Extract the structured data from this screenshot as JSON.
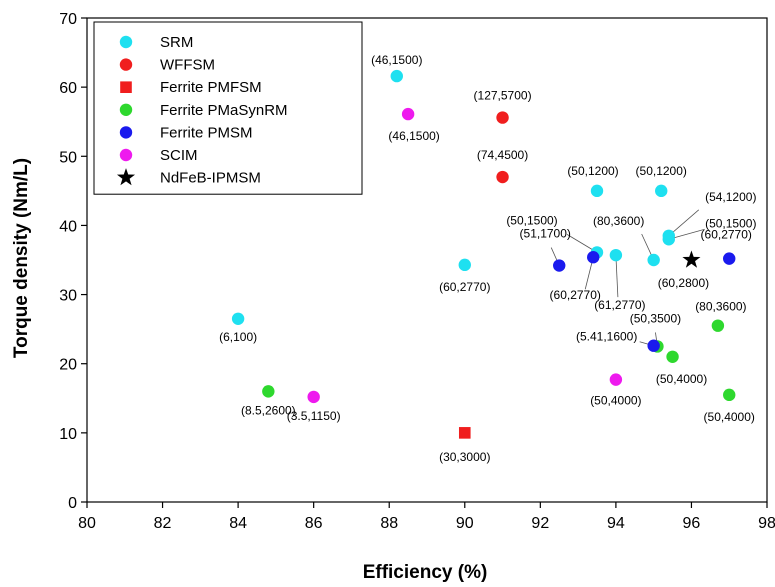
{
  "chart_data": {
    "type": "scatter",
    "xlabel": "Efficiency (%)",
    "ylabel": "Torque density (Nm/L)",
    "xlim": [
      80,
      98
    ],
    "ylim": [
      0,
      70
    ],
    "xticks": [
      80,
      82,
      84,
      86,
      88,
      90,
      92,
      94,
      96,
      98
    ],
    "yticks": [
      0,
      10,
      20,
      30,
      40,
      50,
      60,
      70
    ],
    "grid": false,
    "legend_position": "top-left",
    "series": [
      {
        "name": "SRM",
        "marker": "circle",
        "color": "#1ee0f0",
        "points": [
          {
            "x": 84.0,
            "y": 26.5,
            "label": "(6,100)"
          },
          {
            "x": 88.2,
            "y": 61.6,
            "label": "(46,1500)"
          },
          {
            "x": 90.0,
            "y": 34.3,
            "label": "(60,2770)"
          },
          {
            "x": 93.5,
            "y": 45.0,
            "label": "(50,1200)"
          },
          {
            "x": 95.2,
            "y": 45.0,
            "label": "(50,1200)"
          },
          {
            "x": 93.5,
            "y": 36.1,
            "label": "(50,1500)"
          },
          {
            "x": 94.0,
            "y": 35.7,
            "label": "(61,2770)"
          },
          {
            "x": 95.0,
            "y": 35.0,
            "label": "(80,3600)"
          },
          {
            "x": 95.4,
            "y": 38.5,
            "label": "(54,1200)"
          },
          {
            "x": 95.4,
            "y": 38.0,
            "label": "(50,1500)"
          }
        ]
      },
      {
        "name": "WFFSM",
        "marker": "circle",
        "color": "#f01e1e",
        "points": [
          {
            "x": 91.0,
            "y": 55.6,
            "label": "(127,5700)"
          },
          {
            "x": 91.0,
            "y": 47.0,
            "label": "(74,4500)"
          }
        ]
      },
      {
        "name": "Ferrite PMFSM",
        "marker": "square",
        "color": "#f01e1e",
        "points": [
          {
            "x": 90.0,
            "y": 10.0,
            "label": "(30,3000)"
          }
        ]
      },
      {
        "name": "Ferrite PMaSynRM",
        "marker": "circle",
        "color": "#2ed82e",
        "points": [
          {
            "x": 84.8,
            "y": 16.0,
            "label": "(8.5,2600)"
          },
          {
            "x": 95.1,
            "y": 22.5,
            "label": "(50,3500)"
          },
          {
            "x": 95.5,
            "y": 21.0,
            "label": "(50,4000)"
          },
          {
            "x": 96.7,
            "y": 25.5,
            "label": "(80,3600)"
          },
          {
            "x": 97.0,
            "y": 15.5,
            "label": "(50,4000)"
          }
        ]
      },
      {
        "name": "Ferrite PMSM",
        "marker": "circle",
        "color": "#1a1aee",
        "points": [
          {
            "x": 92.5,
            "y": 34.2,
            "label": "(51,1700)"
          },
          {
            "x": 93.4,
            "y": 35.4,
            "label": "(60,2770)"
          },
          {
            "x": 95.0,
            "y": 22.6,
            "label": "(5.41,1600)"
          },
          {
            "x": 97.0,
            "y": 35.2,
            "label": "(60,2770)"
          }
        ]
      },
      {
        "name": "SCIM",
        "marker": "circle",
        "color": "#ee1aee",
        "points": [
          {
            "x": 88.5,
            "y": 56.1,
            "label": "(46,1500)"
          },
          {
            "x": 86.0,
            "y": 15.2,
            "label": "(3.5,1150)"
          },
          {
            "x": 94.0,
            "y": 17.7,
            "label": "(50,4000)"
          }
        ]
      },
      {
        "name": "NdFeB-IPMSM",
        "marker": "star",
        "color": "#000000",
        "points": [
          {
            "x": 96.0,
            "y": 35.0,
            "label": "(60,2800)"
          }
        ]
      }
    ]
  }
}
